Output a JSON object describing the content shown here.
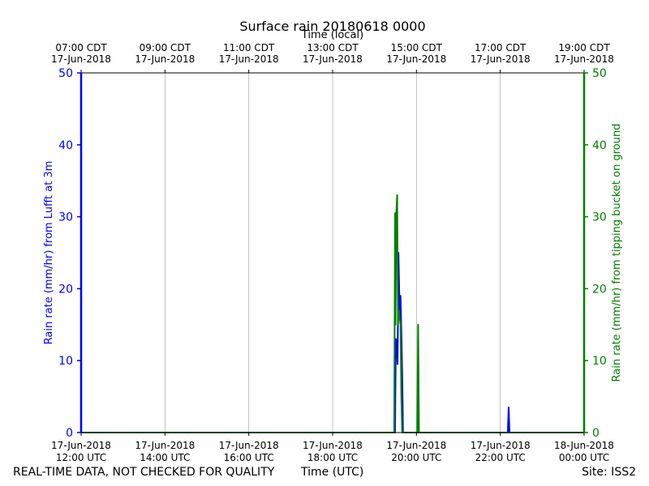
{
  "chart_data": {
    "type": "line",
    "title": "Surface rain 20180618 0000",
    "top_axis_label": "Time (local)",
    "xlabel": "Time (UTC)",
    "ylabel_left": "Rain rate (mm/hr) from Lufft at 3m",
    "ylabel_right": "Rain rate (mm/hr) from tipping bucket on ground",
    "xlim_utc_hours": [
      12,
      24
    ],
    "ylim": [
      0,
      50
    ],
    "ylim_right": [
      0,
      50
    ],
    "grid": "vertical",
    "y_ticks": [
      0,
      10,
      20,
      30,
      40,
      50
    ],
    "y_tick_labels": [
      "0",
      "10",
      "20",
      "30",
      "40",
      "50"
    ],
    "x_ticks_utc": [
      {
        "x": 12,
        "line1": "17-Jun-2018",
        "line2": "12:00 UTC"
      },
      {
        "x": 14,
        "line1": "17-Jun-2018",
        "line2": "14:00 UTC"
      },
      {
        "x": 16,
        "line1": "17-Jun-2018",
        "line2": "16:00 UTC"
      },
      {
        "x": 18,
        "line1": "17-Jun-2018",
        "line2": "18:00 UTC"
      },
      {
        "x": 20,
        "line1": "17-Jun-2018",
        "line2": "20:00 UTC"
      },
      {
        "x": 22,
        "line1": "17-Jun-2018",
        "line2": "22:00 UTC"
      },
      {
        "x": 24,
        "line1": "18-Jun-2018",
        "line2": "00:00 UTC"
      }
    ],
    "x_ticks_local": [
      {
        "x": 12,
        "line1": "07:00 CDT",
        "line2": "17-Jun-2018"
      },
      {
        "x": 14,
        "line1": "09:00 CDT",
        "line2": "17-Jun-2018"
      },
      {
        "x": 16,
        "line1": "11:00 CDT",
        "line2": "17-Jun-2018"
      },
      {
        "x": 18,
        "line1": "13:00 CDT",
        "line2": "17-Jun-2018"
      },
      {
        "x": 20,
        "line1": "15:00 CDT",
        "line2": "17-Jun-2018"
      },
      {
        "x": 22,
        "line1": "17:00 CDT",
        "line2": "17-Jun-2018"
      },
      {
        "x": 24,
        "line1": "19:00 CDT",
        "line2": "17-Jun-2018"
      }
    ],
    "series": [
      {
        "color": "#0000ff",
        "axis": "left",
        "points": [
          [
            12.0,
            0
          ],
          [
            19.49,
            0
          ],
          [
            19.5,
            7.5
          ],
          [
            19.51,
            13
          ],
          [
            19.53,
            12.5
          ],
          [
            19.55,
            9.5
          ],
          [
            19.57,
            25
          ],
          [
            19.6,
            16.5
          ],
          [
            19.62,
            19
          ],
          [
            19.64,
            14
          ],
          [
            19.66,
            8
          ],
          [
            19.68,
            0
          ],
          [
            22.18,
            0
          ],
          [
            22.2,
            3.5
          ],
          [
            22.22,
            0
          ],
          [
            24.0,
            0
          ]
        ]
      },
      {
        "color": "#008000",
        "axis": "right",
        "points": [
          [
            12.0,
            0
          ],
          [
            19.47,
            0
          ],
          [
            19.49,
            30.5
          ],
          [
            19.5,
            15
          ],
          [
            19.52,
            30.5
          ],
          [
            19.54,
            33
          ],
          [
            19.56,
            15
          ],
          [
            19.58,
            17
          ],
          [
            19.6,
            16
          ],
          [
            19.62,
            15
          ],
          [
            19.64,
            5
          ],
          [
            19.66,
            0
          ],
          [
            20.02,
            0
          ],
          [
            20.04,
            15
          ],
          [
            20.06,
            0
          ],
          [
            24.0,
            0
          ]
        ]
      }
    ],
    "colors": {
      "left_axis": "#0000ff",
      "right_axis": "#008000",
      "grid": "#b0b0b0"
    }
  },
  "footer": {
    "left": "REAL-TIME DATA, NOT CHECKED FOR QUALITY",
    "center": "Time (UTC)",
    "right": "Site: ISS2"
  }
}
